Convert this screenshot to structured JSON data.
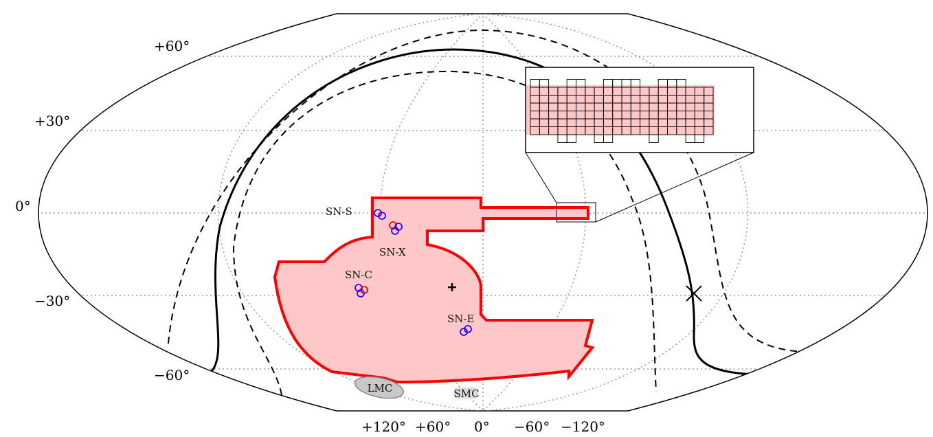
{
  "lat_labels": [
    "+60°",
    "+30°",
    "0°",
    "−30°",
    "−60°"
  ],
  "lon_labels": [
    "+120°",
    "+60°",
    "0°",
    "−60°",
    "−120°"
  ],
  "field_labels": {
    "sn_s": "SN-S",
    "sn_x": "SN-X",
    "sn_c": "SN-C",
    "sn_e": "SN-E"
  },
  "cloud_labels": {
    "lmc": "LMC",
    "smc": "SMC"
  },
  "colors": {
    "footprint_fill": "#ffc8c8",
    "footprint_edge": "#ff0000",
    "ring_blue": "#2a00ff",
    "ring_red": "#ff0000",
    "cloud_fill": "#c8c8c8"
  }
}
